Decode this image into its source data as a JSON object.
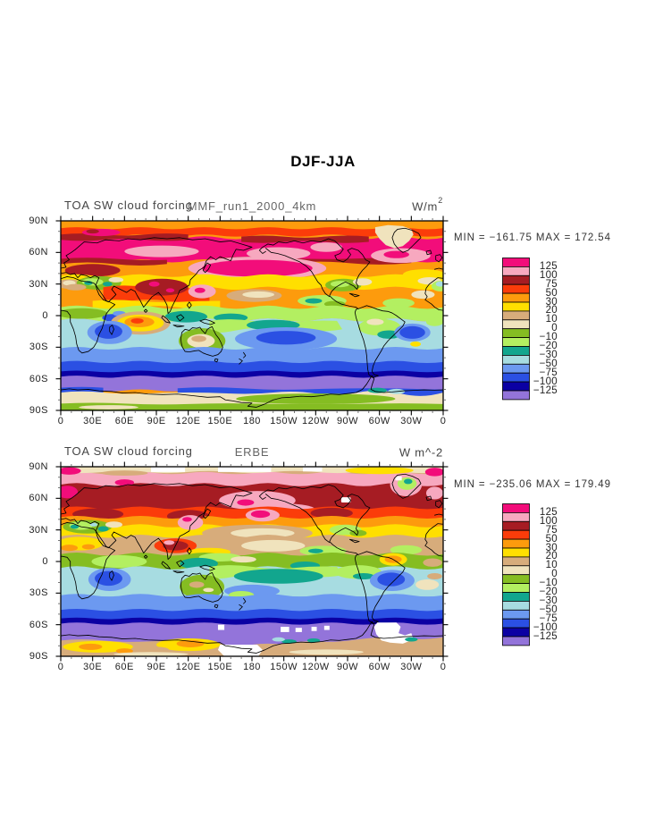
{
  "title": "DJF-JJA",
  "panels": [
    {
      "left_label": "TOA SW cloud forcing",
      "center_label": "MMF_run1_2000_4km",
      "units_base": "W/m",
      "units_sup": "2",
      "stats": "MIN = −161.75 MAX = 172.54"
    },
    {
      "left_label": "TOA SW cloud forcing",
      "center_label": "ERBE",
      "units_base": "W m^-2",
      "units_sup": "",
      "stats": "MIN = −235.06 MAX = 179.49"
    }
  ],
  "axes": {
    "lat_ticks": [
      "90N",
      "60N",
      "30N",
      "0",
      "30S",
      "60S",
      "90S"
    ],
    "lon_ticks": [
      "0",
      "30E",
      "60E",
      "90E",
      "120E",
      "150E",
      "180",
      "150W",
      "120W",
      "90W",
      "60W",
      "30W",
      "0"
    ]
  },
  "colorbar": {
    "labels": [
      "125",
      "100",
      "75",
      "50",
      "30",
      "20",
      "10",
      "0",
      "−10",
      "−20",
      "−30",
      "−50",
      "−75",
      "−100",
      "−125"
    ],
    "colors": [
      "#F20D7A",
      "#F7A8BF",
      "#A61C23",
      "#FB3C0A",
      "#FD9B0D",
      "#FFDF00",
      "#D7AC7B",
      "#F0E3BD",
      "#85BD22",
      "#B3EF61",
      "#12A68E",
      "#A7DCE1",
      "#6C99F0",
      "#2B50E3",
      "#0B00A3",
      "#9374DA"
    ],
    "missing_color": "#FFFFFF"
  },
  "chart_data": {
    "type": "heatmap",
    "title": "DJF-JJA",
    "panels": [
      {
        "title": "MMF_run1_2000_4km",
        "variable": "TOA SW cloud forcing",
        "units": "W/m^2",
        "min": -161.75,
        "max": 172.54
      },
      {
        "title": "ERBE",
        "variable": "TOA SW cloud forcing",
        "units": "W m^-2",
        "min": -235.06,
        "max": 179.49
      }
    ],
    "contour_levels": [
      -125,
      -100,
      -75,
      -50,
      -30,
      -20,
      -10,
      0,
      10,
      20,
      30,
      50,
      75,
      100,
      125
    ],
    "palette_low_to_high": [
      "#9374DA",
      "#0B00A3",
      "#2B50E3",
      "#6C99F0",
      "#A7DCE1",
      "#12A68E",
      "#B3EF61",
      "#85BD22",
      "#F0E3BD",
      "#D7AC7B",
      "#FFDF00",
      "#FD9B0D",
      "#FB3C0A",
      "#A61C23",
      "#F7A8BF",
      "#F20D7A"
    ],
    "x_axis": {
      "ticks": [
        "0",
        "30E",
        "60E",
        "90E",
        "120E",
        "150E",
        "180",
        "150W",
        "120W",
        "90W",
        "60W",
        "30W",
        "0"
      ],
      "range_deg": [
        0,
        360
      ],
      "minor_tick_deg": 10
    },
    "y_axis": {
      "ticks": [
        "90N",
        "60N",
        "30N",
        "0",
        "30S",
        "60S",
        "90S"
      ],
      "range_deg": [
        -90,
        90
      ],
      "minor_tick_deg": 10
    },
    "legend_position": "right",
    "grid": false
  }
}
